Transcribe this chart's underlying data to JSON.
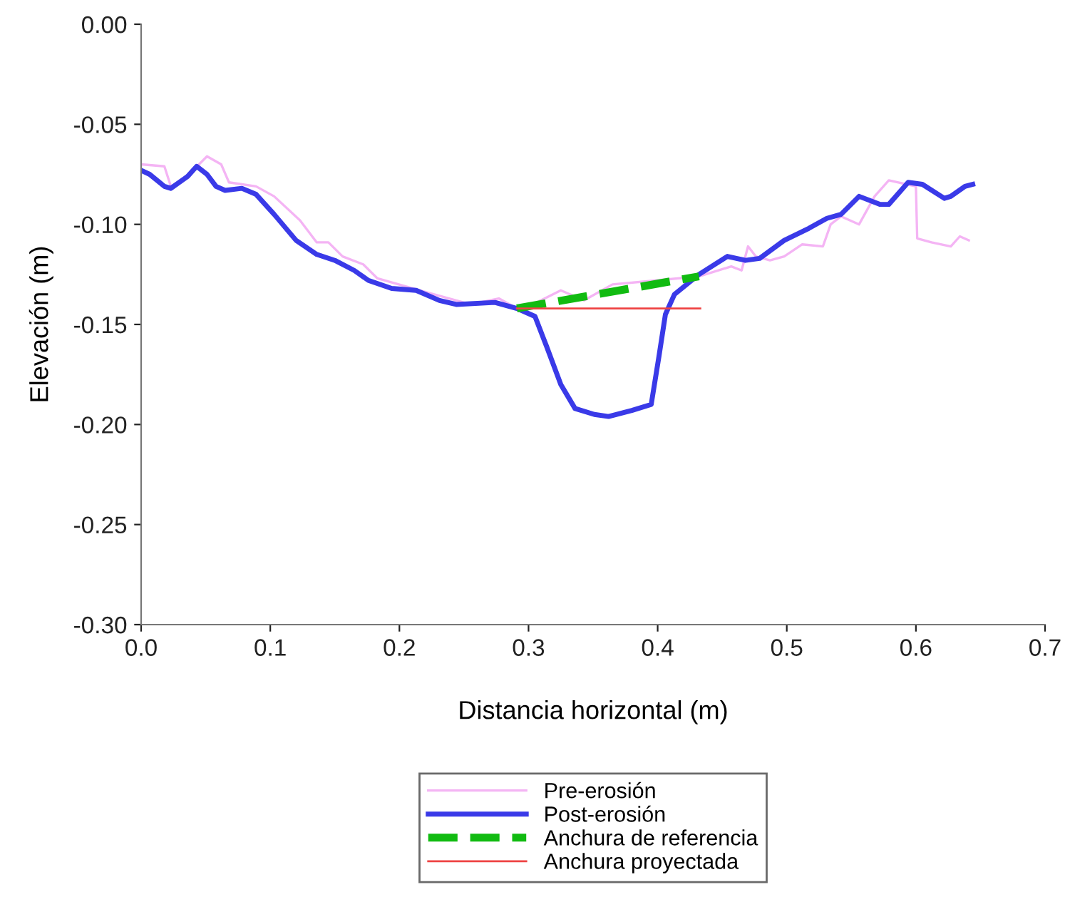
{
  "chart_data": {
    "type": "line",
    "xlabel": "Distancia horizontal (m)",
    "ylabel": "Elevación (m)",
    "xlim": [
      0,
      0.7
    ],
    "ylim": [
      -0.3,
      0
    ],
    "xticks": [
      {
        "value": 0,
        "label": "0.0"
      },
      0.1,
      0.2,
      0.3,
      0.4,
      0.5,
      0.6,
      0.7
    ],
    "yticks": [
      {
        "value": 0,
        "label": "0.00"
      },
      -0.05,
      {
        "value": -0.1,
        "label": "-0.10"
      },
      -0.15,
      {
        "value": -0.2,
        "label": "-0.20"
      },
      -0.25,
      {
        "value": -0.3,
        "label": "-0.30"
      }
    ],
    "grid": false,
    "legend": "bottom",
    "series": [
      {
        "name": "Pre-erosión",
        "color": "#f4b4f4",
        "line_style": "solid",
        "x": [
          0,
          0.018,
          0.023,
          0.034,
          0.051,
          0.062,
          0.068,
          0.089,
          0.103,
          0.123,
          0.136,
          0.145,
          0.156,
          0.172,
          0.183,
          0.216,
          0.255,
          0.277,
          0.294,
          0.325,
          0.343,
          0.365,
          0.399,
          0.432,
          0.457,
          0.465,
          0.47,
          0.476,
          0.487,
          0.498,
          0.512,
          0.528,
          0.534,
          0.542,
          0.556,
          0.568,
          0.579,
          0.6,
          0.601,
          0.612,
          0.627,
          0.634,
          0.641
        ],
        "values": [
          -0.07,
          -0.071,
          -0.081,
          -0.077,
          -0.066,
          -0.07,
          -0.079,
          -0.081,
          -0.086,
          -0.098,
          -0.109,
          -0.109,
          -0.116,
          -0.12,
          -0.127,
          -0.133,
          -0.14,
          -0.137,
          -0.143,
          -0.133,
          -0.138,
          -0.13,
          -0.128,
          -0.126,
          -0.121,
          -0.123,
          -0.111,
          -0.116,
          -0.118,
          -0.116,
          -0.11,
          -0.111,
          -0.1,
          -0.096,
          -0.1,
          -0.086,
          -0.078,
          -0.081,
          -0.107,
          -0.109,
          -0.111,
          -0.106,
          -0.108
        ]
      },
      {
        "name": "Post-erosión",
        "color": "#3a3ae8",
        "line_style": "solid",
        "x": [
          0,
          0.0066,
          0.018,
          0.023,
          0.036,
          0.043,
          0.051,
          0.058,
          0.065,
          0.078,
          0.089,
          0.103,
          0.12,
          0.136,
          0.15,
          0.165,
          0.176,
          0.194,
          0.213,
          0.231,
          0.244,
          0.274,
          0.291,
          0.305,
          0.314,
          0.325,
          0.336,
          0.351,
          0.362,
          0.38,
          0.395,
          0.401,
          0.406,
          0.413,
          0.432,
          0.454,
          0.468,
          0.479,
          0.498,
          0.517,
          0.531,
          0.542,
          0.556,
          0.572,
          0.579,
          0.594,
          0.605,
          0.622,
          0.627,
          0.638,
          0.644
        ],
        "values": [
          -0.073,
          -0.075,
          -0.081,
          -0.082,
          -0.076,
          -0.071,
          -0.075,
          -0.081,
          -0.083,
          -0.082,
          -0.085,
          -0.095,
          -0.108,
          -0.115,
          -0.118,
          -0.123,
          -0.128,
          -0.132,
          -0.133,
          -0.138,
          -0.14,
          -0.139,
          -0.142,
          -0.146,
          -0.161,
          -0.18,
          -0.192,
          -0.195,
          -0.196,
          -0.193,
          -0.19,
          -0.166,
          -0.145,
          -0.135,
          -0.125,
          -0.116,
          -0.118,
          -0.117,
          -0.108,
          -0.102,
          -0.097,
          -0.095,
          -0.086,
          -0.09,
          -0.09,
          -0.079,
          -0.08,
          -0.087,
          -0.086,
          -0.081,
          -0.08
        ]
      },
      {
        "name": "Anchura de referencia",
        "color": "#11bb11",
        "line_style": "dashed",
        "x": [
          0.291,
          0.432
        ],
        "values": [
          -0.142,
          -0.126
        ]
      },
      {
        "name": "Anchura proyectada",
        "color": "#ee4444",
        "line_style": "solid",
        "x": [
          0.291,
          0.433
        ],
        "values": [
          -0.142,
          -0.142
        ]
      }
    ]
  }
}
